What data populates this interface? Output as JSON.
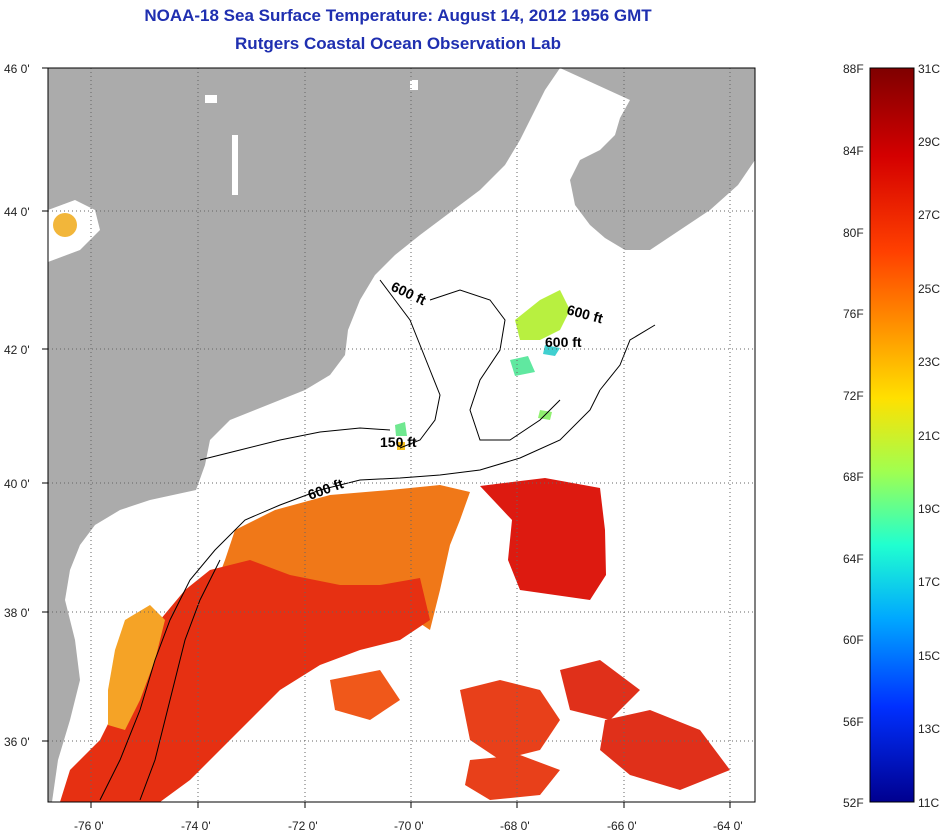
{
  "title": {
    "line1": "NOAA-18 Sea Surface Temperature:  August 14, 2012 1956 GMT",
    "line2": "Rutgers Coastal Ocean Observation Lab"
  },
  "colors": {
    "land": "#ababab",
    "ocean": "#ffffff",
    "title": "#1f2fb0"
  },
  "map": {
    "lat_ticks": [
      "46 0'",
      "44 0'",
      "42 0'",
      "40 0'",
      "38 0'",
      "36 0'"
    ],
    "lon_ticks": [
      "-76 0'",
      "-74 0'",
      "-72 0'",
      "-70 0'",
      "-68 0'",
      "-66 0'",
      "-64 0'"
    ],
    "depth_labels": [
      "600 ft",
      "600 ft",
      "600 ft",
      "150 ft",
      "600 ft"
    ]
  },
  "colorbar": {
    "fahrenheit": [
      "88F",
      "84F",
      "80F",
      "76F",
      "72F",
      "68F",
      "64F",
      "60F",
      "56F",
      "52F"
    ],
    "celsius": [
      "31C",
      "29C",
      "27C",
      "25C",
      "23C",
      "21C",
      "19C",
      "17C",
      "15C",
      "13C",
      "11C"
    ]
  }
}
